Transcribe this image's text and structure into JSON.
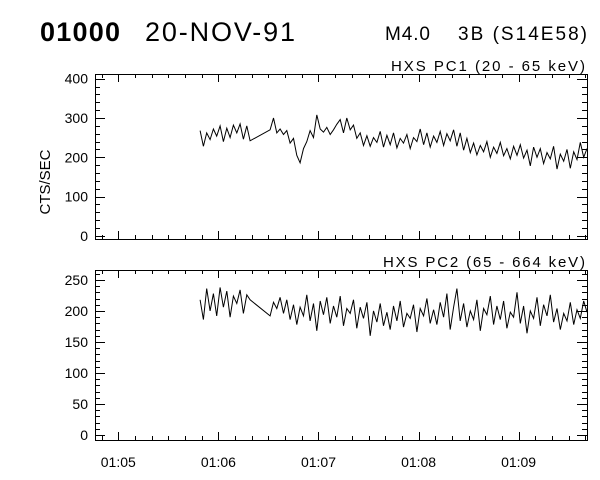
{
  "header": {
    "event_id": "01000",
    "date": "20-NOV-91",
    "goes_class": "M4.0",
    "flare": "3B (S14E58)"
  },
  "colors": {
    "background": "#ffffff",
    "ink": "#000000"
  },
  "chart_data": [
    {
      "type": "line",
      "title": "HXS PC1 (20 - 65 keV)",
      "ylabel": "CTS/SEC",
      "xlim": [
        "01:04:46",
        "01:09:41"
      ],
      "ylim": [
        -8,
        412
      ],
      "yticks": [
        0,
        100,
        200,
        300,
        400
      ],
      "grid": false,
      "legend": "none",
      "x": [
        "01:05:49",
        "01:05:51",
        "01:05:53",
        "01:05:55",
        "01:05:57",
        "01:05:59",
        "01:06:01",
        "01:06:03",
        "01:06:05",
        "01:06:07",
        "01:06:09",
        "01:06:11",
        "01:06:13",
        "01:06:15",
        "01:06:17",
        "01:06:19",
        "01:06:31",
        "01:06:33",
        "01:06:35",
        "01:06:37",
        "01:06:39",
        "01:06:41",
        "01:06:43",
        "01:06:45",
        "01:06:47",
        "01:06:49",
        "01:06:51",
        "01:06:53",
        "01:06:55",
        "01:06:57",
        "01:06:59",
        "01:07:01",
        "01:07:03",
        "01:07:05",
        "01:07:07",
        "01:07:09",
        "01:07:11",
        "01:07:13",
        "01:07:15",
        "01:07:17",
        "01:07:19",
        "01:07:21",
        "01:07:23",
        "01:07:25",
        "01:07:27",
        "01:07:29",
        "01:07:31",
        "01:07:33",
        "01:07:35",
        "01:07:37",
        "01:07:39",
        "01:07:41",
        "01:07:43",
        "01:07:45",
        "01:07:47",
        "01:07:49",
        "01:07:51",
        "01:07:53",
        "01:07:55",
        "01:07:57",
        "01:07:59",
        "01:08:01",
        "01:08:03",
        "01:08:05",
        "01:08:07",
        "01:08:09",
        "01:08:11",
        "01:08:13",
        "01:08:15",
        "01:08:17",
        "01:08:19",
        "01:08:21",
        "01:08:23",
        "01:08:25",
        "01:08:27",
        "01:08:29",
        "01:08:31",
        "01:08:33",
        "01:08:35",
        "01:08:37",
        "01:08:39",
        "01:08:41",
        "01:08:43",
        "01:08:45",
        "01:08:47",
        "01:08:49",
        "01:08:51",
        "01:08:53",
        "01:08:55",
        "01:08:57",
        "01:08:59",
        "01:09:01",
        "01:09:03",
        "01:09:05",
        "01:09:07",
        "01:09:09",
        "01:09:11",
        "01:09:13",
        "01:09:15",
        "01:09:17",
        "01:09:19",
        "01:09:21",
        "01:09:23",
        "01:09:25",
        "01:09:27",
        "01:09:29",
        "01:09:31",
        "01:09:33",
        "01:09:35",
        "01:09:37",
        "01:09:39",
        "01:09:41"
      ],
      "series": [
        {
          "values": [
            268,
            228,
            262,
            245,
            272,
            254,
            280,
            240,
            274,
            250,
            282,
            262,
            285,
            246,
            280,
            242,
            270,
            300,
            262,
            272,
            258,
            268,
            236,
            248,
            205,
            186,
            222,
            240,
            268,
            250,
            308,
            272,
            264,
            276,
            258,
            270,
            284,
            296,
            262,
            300,
            270,
            282,
            248,
            262,
            230,
            255,
            228,
            250,
            238,
            266,
            226,
            256,
            232,
            262,
            224,
            248,
            236,
            258,
            222,
            250,
            240,
            272,
            232,
            262,
            226,
            254,
            238,
            266,
            230,
            260,
            242,
            270,
            228,
            262,
            218,
            248,
            212,
            236,
            206,
            230,
            214,
            240,
            200,
            226,
            210,
            238,
            204,
            222,
            196,
            228,
            205,
            232,
            198,
            218,
            178,
            226,
            200,
            222,
            184,
            212,
            196,
            228,
            170,
            208,
            190,
            220,
            172,
            214,
            194,
            238,
            200,
            222
          ]
        }
      ]
    },
    {
      "type": "line",
      "title": "HXS PC2 (65 - 664 keV)",
      "xlim": [
        "01:04:46",
        "01:09:41"
      ],
      "ylim": [
        -8,
        266
      ],
      "yticks": [
        0,
        50,
        100,
        150,
        200,
        250
      ],
      "xticks": [
        "01:05",
        "01:06",
        "01:07",
        "01:08",
        "01:09"
      ],
      "grid": false,
      "legend": "none",
      "x": [
        "01:05:49",
        "01:05:51",
        "01:05:53",
        "01:05:55",
        "01:05:57",
        "01:05:59",
        "01:06:01",
        "01:06:03",
        "01:06:05",
        "01:06:07",
        "01:06:09",
        "01:06:11",
        "01:06:13",
        "01:06:15",
        "01:06:17",
        "01:06:19",
        "01:06:31",
        "01:06:33",
        "01:06:35",
        "01:06:37",
        "01:06:39",
        "01:06:41",
        "01:06:43",
        "01:06:45",
        "01:06:47",
        "01:06:49",
        "01:06:51",
        "01:06:53",
        "01:06:55",
        "01:06:57",
        "01:06:59",
        "01:07:01",
        "01:07:03",
        "01:07:05",
        "01:07:07",
        "01:07:09",
        "01:07:11",
        "01:07:13",
        "01:07:15",
        "01:07:17",
        "01:07:19",
        "01:07:21",
        "01:07:23",
        "01:07:25",
        "01:07:27",
        "01:07:29",
        "01:07:31",
        "01:07:33",
        "01:07:35",
        "01:07:37",
        "01:07:39",
        "01:07:41",
        "01:07:43",
        "01:07:45",
        "01:07:47",
        "01:07:49",
        "01:07:51",
        "01:07:53",
        "01:07:55",
        "01:07:57",
        "01:07:59",
        "01:08:01",
        "01:08:03",
        "01:08:05",
        "01:08:07",
        "01:08:09",
        "01:08:11",
        "01:08:13",
        "01:08:15",
        "01:08:17",
        "01:08:19",
        "01:08:21",
        "01:08:23",
        "01:08:25",
        "01:08:27",
        "01:08:29",
        "01:08:31",
        "01:08:33",
        "01:08:35",
        "01:08:37",
        "01:08:39",
        "01:08:41",
        "01:08:43",
        "01:08:45",
        "01:08:47",
        "01:08:49",
        "01:08:51",
        "01:08:53",
        "01:08:55",
        "01:08:57",
        "01:08:59",
        "01:09:01",
        "01:09:03",
        "01:09:05",
        "01:09:07",
        "01:09:09",
        "01:09:11",
        "01:09:13",
        "01:09:15",
        "01:09:17",
        "01:09:19",
        "01:09:21",
        "01:09:23",
        "01:09:25",
        "01:09:27",
        "01:09:29",
        "01:09:31",
        "01:09:33",
        "01:09:35",
        "01:09:37",
        "01:09:39",
        "01:09:41"
      ],
      "series": [
        {
          "values": [
            218,
            186,
            236,
            200,
            228,
            192,
            238,
            206,
            232,
            190,
            224,
            212,
            234,
            196,
            226,
            218,
            192,
            214,
            204,
            222,
            196,
            218,
            186,
            210,
            178,
            206,
            192,
            226,
            184,
            212,
            168,
            216,
            194,
            222,
            180,
            208,
            190,
            224,
            176,
            204,
            196,
            218,
            172,
            206,
            188,
            214,
            160,
            200,
            182,
            212,
            176,
            198,
            170,
            208,
            184,
            216,
            174,
            196,
            188,
            210,
            166,
            204,
            192,
            220,
            180,
            202,
            178,
            214,
            190,
            228,
            170,
            206,
            236,
            184,
            212,
            174,
            200,
            186,
            218,
            168,
            204,
            194,
            224,
            178,
            208,
            186,
            216,
            172,
            198,
            190,
            230,
            180,
            208,
            164,
            200,
            188,
            222,
            176,
            210,
            192,
            226,
            182,
            204,
            170,
            196,
            184,
            214,
            178,
            202,
            188,
            216,
            198
          ]
        }
      ]
    }
  ]
}
